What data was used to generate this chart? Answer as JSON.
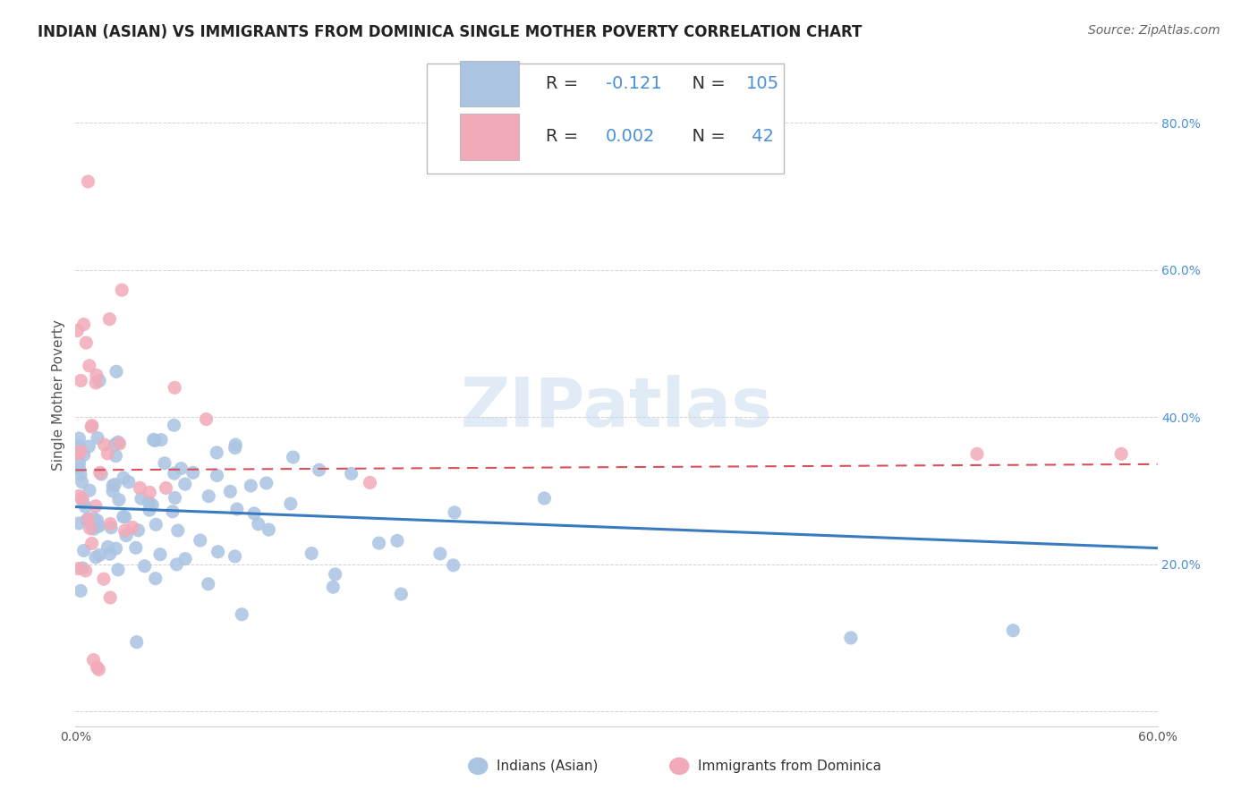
{
  "title": "INDIAN (ASIAN) VS IMMIGRANTS FROM DOMINICA SINGLE MOTHER POVERTY CORRELATION CHART",
  "source": "Source: ZipAtlas.com",
  "ylabel": "Single Mother Poverty",
  "y_ticks": [
    0.0,
    0.2,
    0.4,
    0.6,
    0.8
  ],
  "y_tick_labels": [
    "",
    "20.0%",
    "40.0%",
    "60.0%",
    "80.0%"
  ],
  "x_range": [
    0.0,
    0.6
  ],
  "y_range": [
    -0.02,
    0.88
  ],
  "watermark": "ZIPatlas",
  "scatter_blue_color": "#aac4e2",
  "scatter_pink_color": "#f2aab8",
  "trend_blue_color": "#3a7abf",
  "trend_pink_color": "#d94f5c",
  "blue_trend_x": [
    0.0,
    0.6
  ],
  "blue_trend_y": [
    0.278,
    0.222
  ],
  "pink_trend_x": [
    0.0,
    0.6
  ],
  "pink_trend_y": [
    0.328,
    0.336
  ],
  "legend_1_color": "#aac4e2",
  "legend_2_color": "#f2aab8",
  "title_fontsize": 12,
  "source_fontsize": 10,
  "axis_label_fontsize": 11,
  "tick_fontsize": 10,
  "legend_fontsize": 13,
  "background_color": "#ffffff",
  "grid_color": "#cccccc",
  "legend_blue_r": "-0.121",
  "legend_blue_n": "105",
  "legend_pink_r": "0.002",
  "legend_pink_n": "42",
  "bottom_label_blue": "Indians (Asian)",
  "bottom_label_pink": "Immigrants from Dominica"
}
